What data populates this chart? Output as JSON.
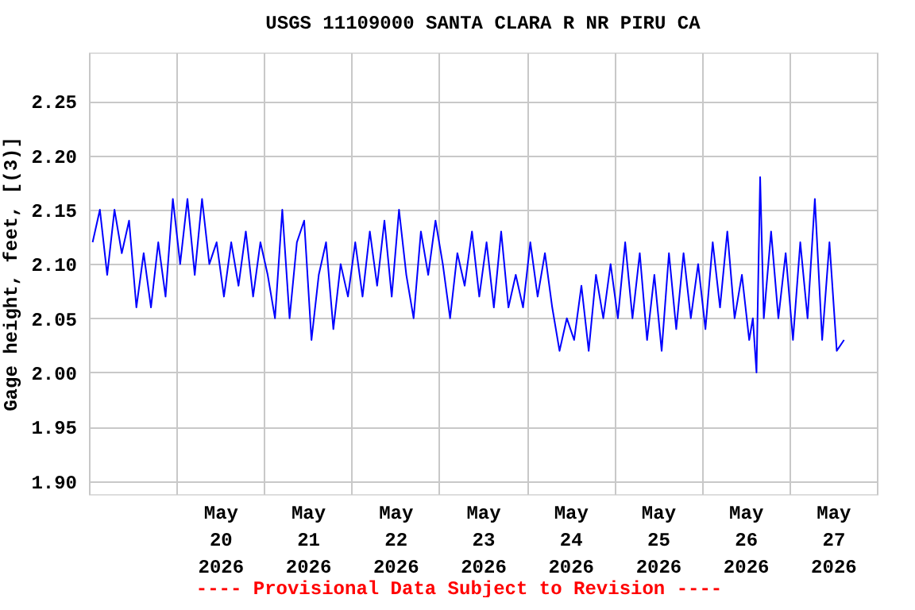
{
  "chart_data": {
    "type": "line",
    "title": "USGS 11109000 SANTA CLARA R NR PIRU CA",
    "ylabel": "Gage height, feet, [(3)]",
    "annotations": [
      "---- Provisional Data Subject to Revision ----"
    ],
    "x": [
      "2026-05-19T01:00",
      "2026-05-19T03:00",
      "2026-05-19T05:00",
      "2026-05-19T07:00",
      "2026-05-19T09:00",
      "2026-05-19T11:00",
      "2026-05-19T13:00",
      "2026-05-19T15:00",
      "2026-05-19T17:00",
      "2026-05-19T19:00",
      "2026-05-19T21:00",
      "2026-05-19T23:00",
      "2026-05-20T01:00",
      "2026-05-20T03:00",
      "2026-05-20T05:00",
      "2026-05-20T07:00",
      "2026-05-20T09:00",
      "2026-05-20T11:00",
      "2026-05-20T13:00",
      "2026-05-20T15:00",
      "2026-05-20T17:00",
      "2026-05-20T19:00",
      "2026-05-20T21:00",
      "2026-05-20T23:00",
      "2026-05-21T01:00",
      "2026-05-21T03:00",
      "2026-05-21T05:00",
      "2026-05-21T07:00",
      "2026-05-21T09:00",
      "2026-05-21T11:00",
      "2026-05-21T13:00",
      "2026-05-21T15:00",
      "2026-05-21T17:00",
      "2026-05-21T19:00",
      "2026-05-21T21:00",
      "2026-05-21T23:00",
      "2026-05-22T01:00",
      "2026-05-22T03:00",
      "2026-05-22T05:00",
      "2026-05-22T07:00",
      "2026-05-22T09:00",
      "2026-05-22T11:00",
      "2026-05-22T13:00",
      "2026-05-22T15:00",
      "2026-05-22T17:00",
      "2026-05-22T19:00",
      "2026-05-22T21:00",
      "2026-05-22T23:00",
      "2026-05-23T01:00",
      "2026-05-23T03:00",
      "2026-05-23T05:00",
      "2026-05-23T07:00",
      "2026-05-23T09:00",
      "2026-05-23T11:00",
      "2026-05-23T13:00",
      "2026-05-23T15:00",
      "2026-05-23T17:00",
      "2026-05-23T19:00",
      "2026-05-23T21:00",
      "2026-05-23T23:00",
      "2026-05-24T01:00",
      "2026-05-24T03:00",
      "2026-05-24T05:00",
      "2026-05-24T07:00",
      "2026-05-24T09:00",
      "2026-05-24T11:00",
      "2026-05-24T13:00",
      "2026-05-24T15:00",
      "2026-05-24T17:00",
      "2026-05-24T19:00",
      "2026-05-24T21:00",
      "2026-05-24T23:00",
      "2026-05-25T01:00",
      "2026-05-25T03:00",
      "2026-05-25T05:00",
      "2026-05-25T07:00",
      "2026-05-25T09:00",
      "2026-05-25T11:00",
      "2026-05-25T13:00",
      "2026-05-25T15:00",
      "2026-05-25T17:00",
      "2026-05-25T19:00",
      "2026-05-25T21:00",
      "2026-05-25T23:00",
      "2026-05-26T01:00",
      "2026-05-26T03:00",
      "2026-05-26T05:00",
      "2026-05-26T07:00",
      "2026-05-26T09:00",
      "2026-05-26T11:00",
      "2026-05-26T13:00",
      "2026-05-26T14:00",
      "2026-05-26T15:00",
      "2026-05-26T16:00",
      "2026-05-26T17:00",
      "2026-05-26T19:00",
      "2026-05-26T21:00",
      "2026-05-26T23:00",
      "2026-05-27T01:00",
      "2026-05-27T03:00",
      "2026-05-27T05:00",
      "2026-05-27T07:00",
      "2026-05-27T09:00",
      "2026-05-27T11:00",
      "2026-05-27T13:00",
      "2026-05-27T15:00"
    ],
    "series": [
      {
        "color": "#0000ff",
        "values": [
          2.12,
          2.15,
          2.09,
          2.15,
          2.11,
          2.14,
          2.06,
          2.11,
          2.06,
          2.12,
          2.07,
          2.16,
          2.1,
          2.16,
          2.09,
          2.16,
          2.1,
          2.12,
          2.07,
          2.12,
          2.08,
          2.13,
          2.07,
          2.12,
          2.09,
          2.05,
          2.15,
          2.05,
          2.12,
          2.14,
          2.03,
          2.09,
          2.12,
          2.04,
          2.1,
          2.07,
          2.12,
          2.07,
          2.13,
          2.08,
          2.14,
          2.07,
          2.15,
          2.09,
          2.05,
          2.13,
          2.09,
          2.14,
          2.1,
          2.05,
          2.11,
          2.08,
          2.13,
          2.07,
          2.12,
          2.06,
          2.13,
          2.06,
          2.09,
          2.06,
          2.12,
          2.07,
          2.11,
          2.06,
          2.02,
          2.05,
          2.03,
          2.08,
          2.02,
          2.09,
          2.05,
          2.1,
          2.05,
          2.12,
          2.05,
          2.11,
          2.03,
          2.09,
          2.02,
          2.11,
          2.04,
          2.11,
          2.05,
          2.1,
          2.04,
          2.12,
          2.06,
          2.13,
          2.05,
          2.09,
          2.03,
          2.05,
          2.0,
          2.18,
          2.05,
          2.13,
          2.05,
          2.11,
          2.03,
          2.12,
          2.05,
          2.16,
          2.03,
          2.12,
          2.02,
          2.03
        ]
      }
    ],
    "xlim": [
      "2026-05-19",
      "2026-05-28"
    ],
    "xticks": [
      {
        "value": "2026-05-19",
        "label": null
      },
      {
        "value": "2026-05-20",
        "label": null
      },
      {
        "value": "2026-05-21",
        "label": null
      },
      {
        "value": "2026-05-22",
        "label": null
      },
      {
        "value": "2026-05-23",
        "label": null
      },
      {
        "value": "2026-05-24",
        "label": null
      },
      {
        "value": "2026-05-25",
        "label": null
      },
      {
        "value": "2026-05-26",
        "label": null
      },
      {
        "value": "2026-05-27",
        "label": null
      },
      {
        "value": "2026-05-28",
        "label": null
      },
      {
        "value": "2026-05-20T12:00",
        "label": "May 20 2026"
      },
      {
        "value": "2026-05-21T12:00",
        "label": "May 21 2026"
      },
      {
        "value": "2026-05-22T12:00",
        "label": "May 22 2026"
      },
      {
        "value": "2026-05-23T12:00",
        "label": "May 23 2026"
      },
      {
        "value": "2026-05-24T12:00",
        "label": "May 24 2026"
      },
      {
        "value": "2026-05-25T12:00",
        "label": "May 25 2026"
      },
      {
        "value": "2026-05-26T12:00",
        "label": "May 26 2026"
      },
      {
        "value": "2026-05-27T12:00",
        "label": "May 27 2026"
      }
    ],
    "ylim": [
      1.888,
      2.295
    ],
    "yticks": [
      {
        "value": 1.9,
        "label": "1.90"
      },
      {
        "value": 1.95,
        "label": "1.95"
      },
      {
        "value": 2.0,
        "label": "2.00"
      },
      {
        "value": 2.05,
        "label": "2.05"
      },
      {
        "value": 2.1,
        "label": "2.10"
      },
      {
        "value": 2.15,
        "label": "2.15"
      },
      {
        "value": 2.2,
        "label": "2.20"
      },
      {
        "value": 2.25,
        "label": "2.25"
      }
    ],
    "grid": true,
    "legend": false,
    "marker": "none",
    "line_style": "solid"
  }
}
